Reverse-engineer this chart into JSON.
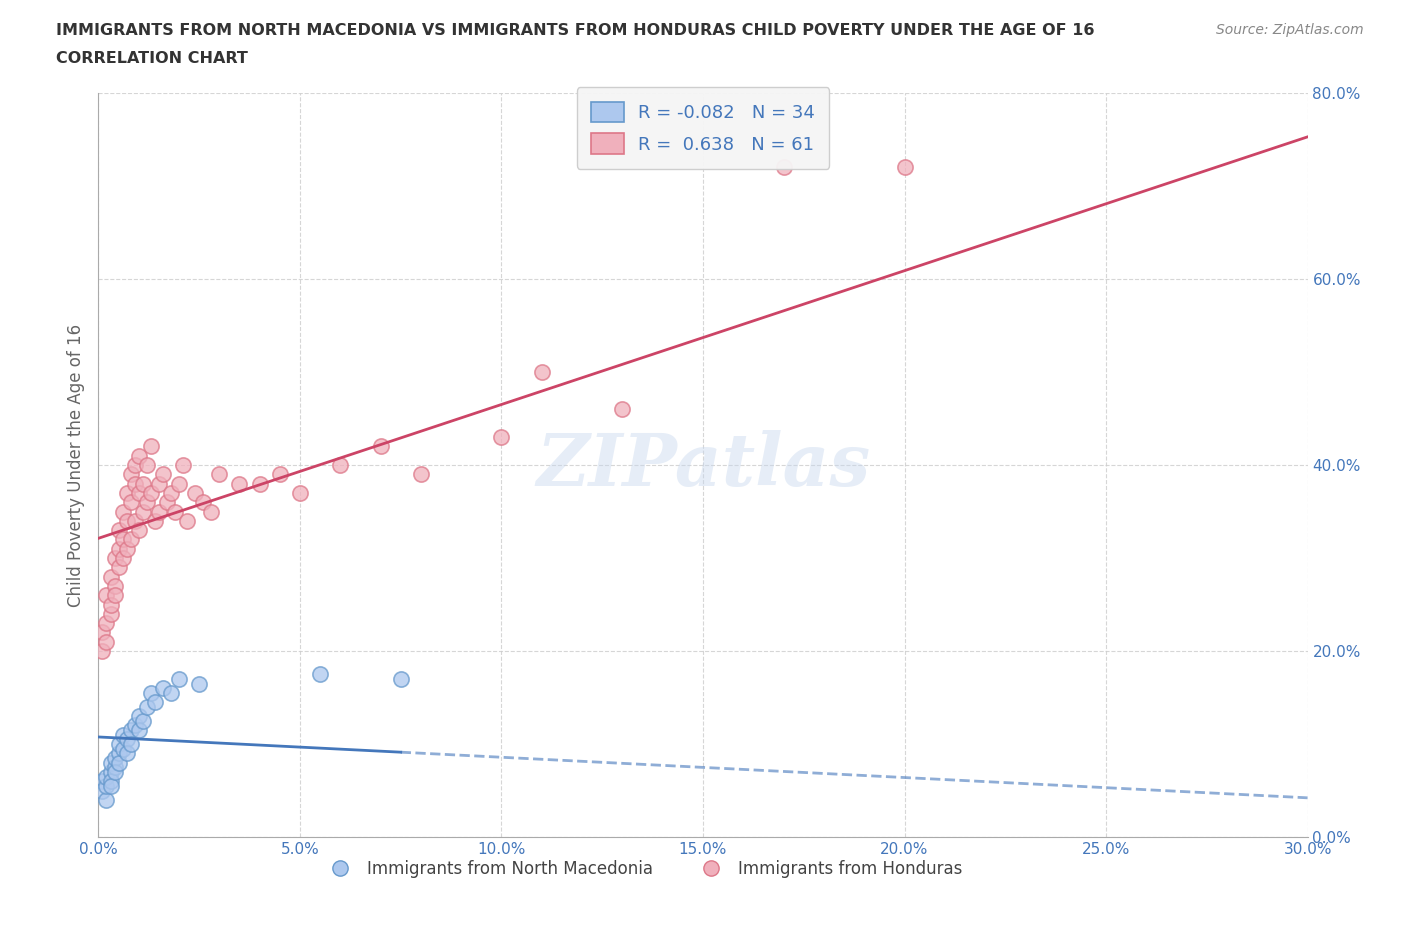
{
  "title_line1": "IMMIGRANTS FROM NORTH MACEDONIA VS IMMIGRANTS FROM HONDURAS CHILD POVERTY UNDER THE AGE OF 16",
  "title_line2": "CORRELATION CHART",
  "source_text": "Source: ZipAtlas.com",
  "ylabel": "Child Poverty Under the Age of 16",
  "xlim": [
    0.0,
    0.3
  ],
  "ylim": [
    0.0,
    0.8
  ],
  "xticks": [
    0.0,
    0.05,
    0.1,
    0.15,
    0.2,
    0.25,
    0.3
  ],
  "xticklabels": [
    "0.0%",
    "5.0%",
    "10.0%",
    "15.0%",
    "20.0%",
    "25.0%",
    "30.0%"
  ],
  "yticks": [
    0.0,
    0.2,
    0.4,
    0.6,
    0.8
  ],
  "yticklabels": [
    "0.0%",
    "20.0%",
    "40.0%",
    "60.0%",
    "80.0%"
  ],
  "north_macedonia": {
    "color": "#adc8ee",
    "edge_color": "#6699cc",
    "line_color": "#4477bb",
    "R": -0.082,
    "N": 34,
    "label": "Immigrants from North Macedonia",
    "x": [
      0.001,
      0.001,
      0.002,
      0.002,
      0.002,
      0.003,
      0.003,
      0.003,
      0.003,
      0.004,
      0.004,
      0.004,
      0.005,
      0.005,
      0.005,
      0.006,
      0.006,
      0.007,
      0.007,
      0.008,
      0.008,
      0.009,
      0.01,
      0.01,
      0.011,
      0.012,
      0.013,
      0.014,
      0.016,
      0.018,
      0.02,
      0.025,
      0.055,
      0.075
    ],
    "y": [
      0.06,
      0.05,
      0.04,
      0.055,
      0.065,
      0.07,
      0.06,
      0.08,
      0.055,
      0.075,
      0.085,
      0.07,
      0.09,
      0.08,
      0.1,
      0.095,
      0.11,
      0.105,
      0.09,
      0.115,
      0.1,
      0.12,
      0.13,
      0.115,
      0.125,
      0.14,
      0.155,
      0.145,
      0.16,
      0.155,
      0.17,
      0.165,
      0.175,
      0.17
    ]
  },
  "honduras": {
    "color": "#f0b0bc",
    "edge_color": "#dd7788",
    "line_color": "#cc4466",
    "R": 0.638,
    "N": 61,
    "label": "Immigrants from Honduras",
    "x": [
      0.001,
      0.001,
      0.002,
      0.002,
      0.002,
      0.003,
      0.003,
      0.003,
      0.004,
      0.004,
      0.004,
      0.005,
      0.005,
      0.005,
      0.006,
      0.006,
      0.006,
      0.007,
      0.007,
      0.007,
      0.008,
      0.008,
      0.008,
      0.009,
      0.009,
      0.009,
      0.01,
      0.01,
      0.01,
      0.011,
      0.011,
      0.012,
      0.012,
      0.013,
      0.013,
      0.014,
      0.015,
      0.015,
      0.016,
      0.017,
      0.018,
      0.019,
      0.02,
      0.021,
      0.022,
      0.024,
      0.026,
      0.028,
      0.03,
      0.035,
      0.04,
      0.045,
      0.05,
      0.06,
      0.07,
      0.08,
      0.1,
      0.11,
      0.13,
      0.17,
      0.2
    ],
    "y": [
      0.2,
      0.22,
      0.23,
      0.26,
      0.21,
      0.24,
      0.28,
      0.25,
      0.27,
      0.3,
      0.26,
      0.31,
      0.29,
      0.33,
      0.3,
      0.32,
      0.35,
      0.31,
      0.34,
      0.37,
      0.32,
      0.36,
      0.39,
      0.34,
      0.38,
      0.4,
      0.33,
      0.37,
      0.41,
      0.35,
      0.38,
      0.36,
      0.4,
      0.37,
      0.42,
      0.34,
      0.38,
      0.35,
      0.39,
      0.36,
      0.37,
      0.35,
      0.38,
      0.4,
      0.34,
      0.37,
      0.36,
      0.35,
      0.39,
      0.38,
      0.38,
      0.39,
      0.37,
      0.4,
      0.42,
      0.39,
      0.43,
      0.5,
      0.46,
      0.72,
      0.72
    ]
  },
  "watermark": "ZIPatlas",
  "background_color": "#ffffff",
  "grid_color": "#cccccc",
  "title_color": "#333333",
  "tick_color": "#4477bb",
  "source_color": "#888888"
}
